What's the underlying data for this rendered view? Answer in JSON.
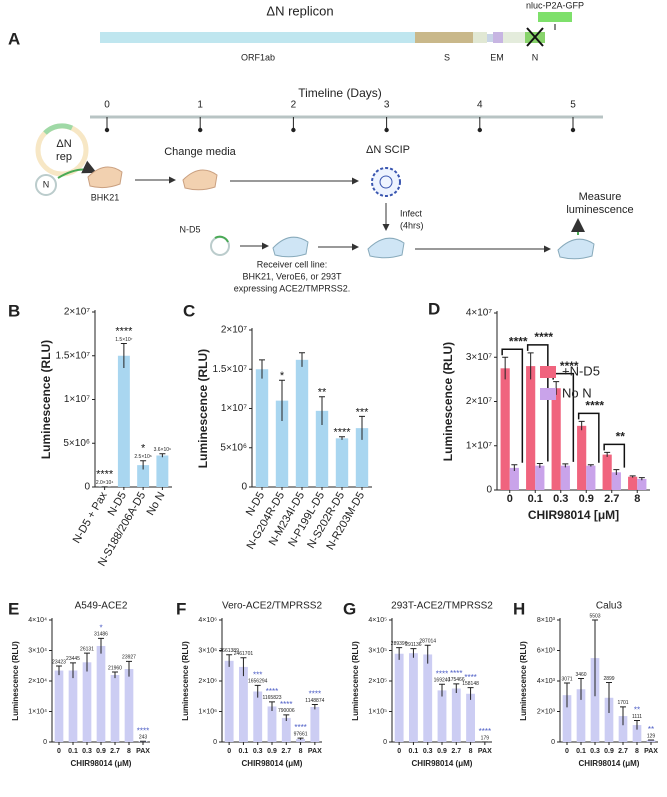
{
  "panel_a": {
    "label": "A",
    "replicon": {
      "title": "ΔN replicon",
      "reporter": "nluc-P2A-GFP",
      "genes": [
        "ORF1ab",
        "S",
        "EM",
        "N"
      ]
    },
    "timeline": {
      "title": "Timeline (Days)",
      "days": [
        0,
        1,
        2,
        3,
        4,
        5
      ]
    },
    "labels": {
      "rep_1": "ΔN",
      "rep_2": "rep",
      "n_plasmid": "N",
      "bhk21": "BHK21",
      "change_media": "Change media",
      "scip": "ΔN SCIP",
      "infect_1": "Infect",
      "infect_2": "(4hrs)",
      "nd5": "N-D5",
      "receiver_1": "Receiver cell line:",
      "receiver_2": "BHK21, VeroE6, or 293T",
      "receiver_3": "expressing ACE2/TMPRSS2.",
      "measure_1": "Measure",
      "measure_2": "luminescence"
    }
  },
  "chart_data": [
    {
      "type": "bar",
      "panel": "B",
      "y_label": "Luminescence (RLU)",
      "color": "#a9d6f0",
      "categories": [
        "N-D5 + Pax",
        "N-D5",
        "N-S188/206A-D5",
        "No N"
      ],
      "values": [
        20000,
        15000000,
        2500000,
        3600000
      ],
      "errors": [
        0,
        1400000,
        500000,
        200000
      ],
      "value_labels": [
        "2.0×10⁴",
        "1.5×10⁷",
        "2.5×10⁶",
        "3.6×10⁶"
      ],
      "significance": [
        "****",
        "****",
        "*",
        null
      ],
      "ylim": [
        0,
        20000000
      ],
      "yticks": [
        0,
        {
          "value": 5000000,
          "label": "5×10⁶"
        },
        {
          "value": 10000000,
          "label": "1×10⁷"
        },
        {
          "value": 15000000,
          "label": "1.5×10⁷"
        },
        {
          "value": 20000000,
          "label": "2×10⁷"
        }
      ]
    },
    {
      "type": "bar",
      "panel": "C",
      "y_label": "Luminescence (RLU)",
      "color": "#a9d6f0",
      "categories": [
        "N-D5",
        "N-G204R-D5",
        "N-M234I-D5",
        "N-P199L-D5",
        "N-S202R-D5",
        "N-R203M-D5"
      ],
      "values": [
        15000000,
        11000000,
        16200000,
        9700000,
        6200000,
        7500000
      ],
      "errors": [
        1200000,
        2600000,
        900000,
        1800000,
        200000,
        1500000
      ],
      "significance": [
        null,
        "*",
        null,
        "**",
        "****",
        "***"
      ],
      "ylim": [
        0,
        20000000
      ],
      "yticks": [
        0,
        {
          "value": 5000000,
          "label": "5×10⁶"
        },
        {
          "value": 10000000,
          "label": "1×10⁷"
        },
        {
          "value": 15000000,
          "label": "1.5×10⁷"
        },
        {
          "value": 20000000,
          "label": "2×10⁷"
        }
      ]
    },
    {
      "type": "grouped_bar",
      "panel": "D",
      "y_label": "Luminescence (RLU)",
      "x_label": "CHIR98014 [μM]",
      "categories": [
        "0",
        "0.1",
        "0.3",
        "0.9",
        "2.7",
        "8"
      ],
      "series": [
        {
          "name": "+N-D5",
          "color": "#f0647e",
          "values": [
            27500000,
            28000000,
            23000000,
            14500000,
            8000000,
            3000000
          ],
          "errors": [
            2500000,
            3000000,
            1500000,
            1000000,
            500000,
            200000
          ]
        },
        {
          "name": "No N",
          "color": "#c9a3ea",
          "values": [
            5000000,
            5500000,
            5500000,
            5500000,
            4000000,
            2500000
          ],
          "errors": [
            700000,
            500000,
            400000,
            200000,
            600000,
            300000
          ]
        }
      ],
      "significance": [
        "****",
        "****",
        "****",
        "****",
        "**",
        null
      ],
      "ylim": [
        0,
        40000000
      ],
      "yticks": [
        0,
        {
          "value": 10000000,
          "label": "1×10⁷"
        },
        {
          "value": 20000000,
          "label": "2×10⁷"
        },
        {
          "value": 30000000,
          "label": "3×10⁷"
        },
        {
          "value": 40000000,
          "label": "4×10⁷"
        }
      ]
    },
    {
      "type": "bar",
      "panel": "E",
      "title": "A549-ACE2",
      "y_label": "Luminescence (RLU)",
      "x_label": "CHIR98014 (μM)",
      "color": "#cccdf3",
      "categories": [
        "0",
        "0.1",
        "0.3",
        "0.9",
        "2.7",
        "8",
        "PAX"
      ],
      "values": [
        23423,
        23445,
        26131,
        31486,
        21960,
        23927,
        243
      ],
      "errors": [
        1500,
        2500,
        3000,
        2500,
        1000,
        2500,
        0
      ],
      "significance": [
        null,
        null,
        null,
        "*",
        null,
        null,
        "****"
      ],
      "ylim": [
        0,
        40000
      ],
      "yticks": [
        0,
        {
          "value": 10000,
          "label": "1×10⁴"
        },
        {
          "value": 20000,
          "label": "2×10⁴"
        },
        {
          "value": 30000,
          "label": "3×10⁴"
        },
        {
          "value": 40000,
          "label": "4×10⁴"
        }
      ]
    },
    {
      "type": "bar",
      "panel": "F",
      "title": "Vero-ACE2/TMPRSS2",
      "y_label": "Luminescence (RLU)",
      "x_label": "CHIR98014 (μM)",
      "color": "#cccdf3",
      "categories": [
        "0",
        "0.1",
        "0.3",
        "0.9",
        "2.7",
        "8",
        "PAX"
      ],
      "values": [
        2661389,
        2461701,
        1656294,
        1165823,
        790006,
        97661,
        1148874
      ],
      "errors": [
        200000,
        300000,
        200000,
        150000,
        100000,
        30000,
        80000
      ],
      "significance": [
        null,
        null,
        "***",
        "****",
        "****",
        "****",
        "****"
      ],
      "ylim": [
        0,
        4000000
      ],
      "yticks": [
        0,
        {
          "value": 1000000,
          "label": "1×10⁶"
        },
        {
          "value": 2000000,
          "label": "2×10⁶"
        },
        {
          "value": 3000000,
          "label": "3×10⁶"
        },
        {
          "value": 4000000,
          "label": "4×10⁶"
        }
      ]
    },
    {
      "type": "bar",
      "panel": "G",
      "title": "293T-ACE2/TMPRSS2",
      "y_label": "Luminescence (RLU)",
      "x_label": "CHIR98014 (μM)",
      "color": "#cccdf3",
      "categories": [
        "0",
        "0.1",
        "0.3",
        "0.9",
        "2.7",
        "8",
        "PAX"
      ],
      "values": [
        289396,
        291136,
        287014,
        169240,
        175466,
        158148,
        179
      ],
      "errors": [
        20000,
        15000,
        30000,
        20000,
        15000,
        20000,
        0
      ],
      "significance": [
        null,
        null,
        null,
        "****",
        "****",
        "****",
        "****"
      ],
      "ylim": [
        0,
        400000
      ],
      "yticks": [
        0,
        {
          "value": 100000,
          "label": "1×10⁵"
        },
        {
          "value": 200000,
          "label": "2×10⁵"
        },
        {
          "value": 300000,
          "label": "3×10⁵"
        },
        {
          "value": 400000,
          "label": "4×10⁵"
        }
      ]
    },
    {
      "type": "bar",
      "panel": "H",
      "title": "Calu3",
      "y_label": "Luminescence (RLU)",
      "x_label": "CHIR98014 (μM)",
      "color": "#cccdf3",
      "categories": [
        "0",
        "0.1",
        "0.3",
        "0.9",
        "2.7",
        "8",
        "PAX"
      ],
      "values": [
        3071,
        3460,
        5503,
        2899,
        1701,
        1111,
        129
      ],
      "errors": [
        800,
        700,
        2500,
        1000,
        600,
        300,
        0
      ],
      "significance": [
        null,
        null,
        null,
        null,
        null,
        "**",
        "**"
      ],
      "ylim": [
        0,
        8000
      ],
      "yticks": [
        0,
        {
          "value": 2000,
          "label": "2×10³"
        },
        {
          "value": 4000,
          "label": "4×10³"
        },
        {
          "value": 6000,
          "label": "6×10³"
        },
        {
          "value": 8000,
          "label": "8×10³"
        }
      ]
    }
  ]
}
